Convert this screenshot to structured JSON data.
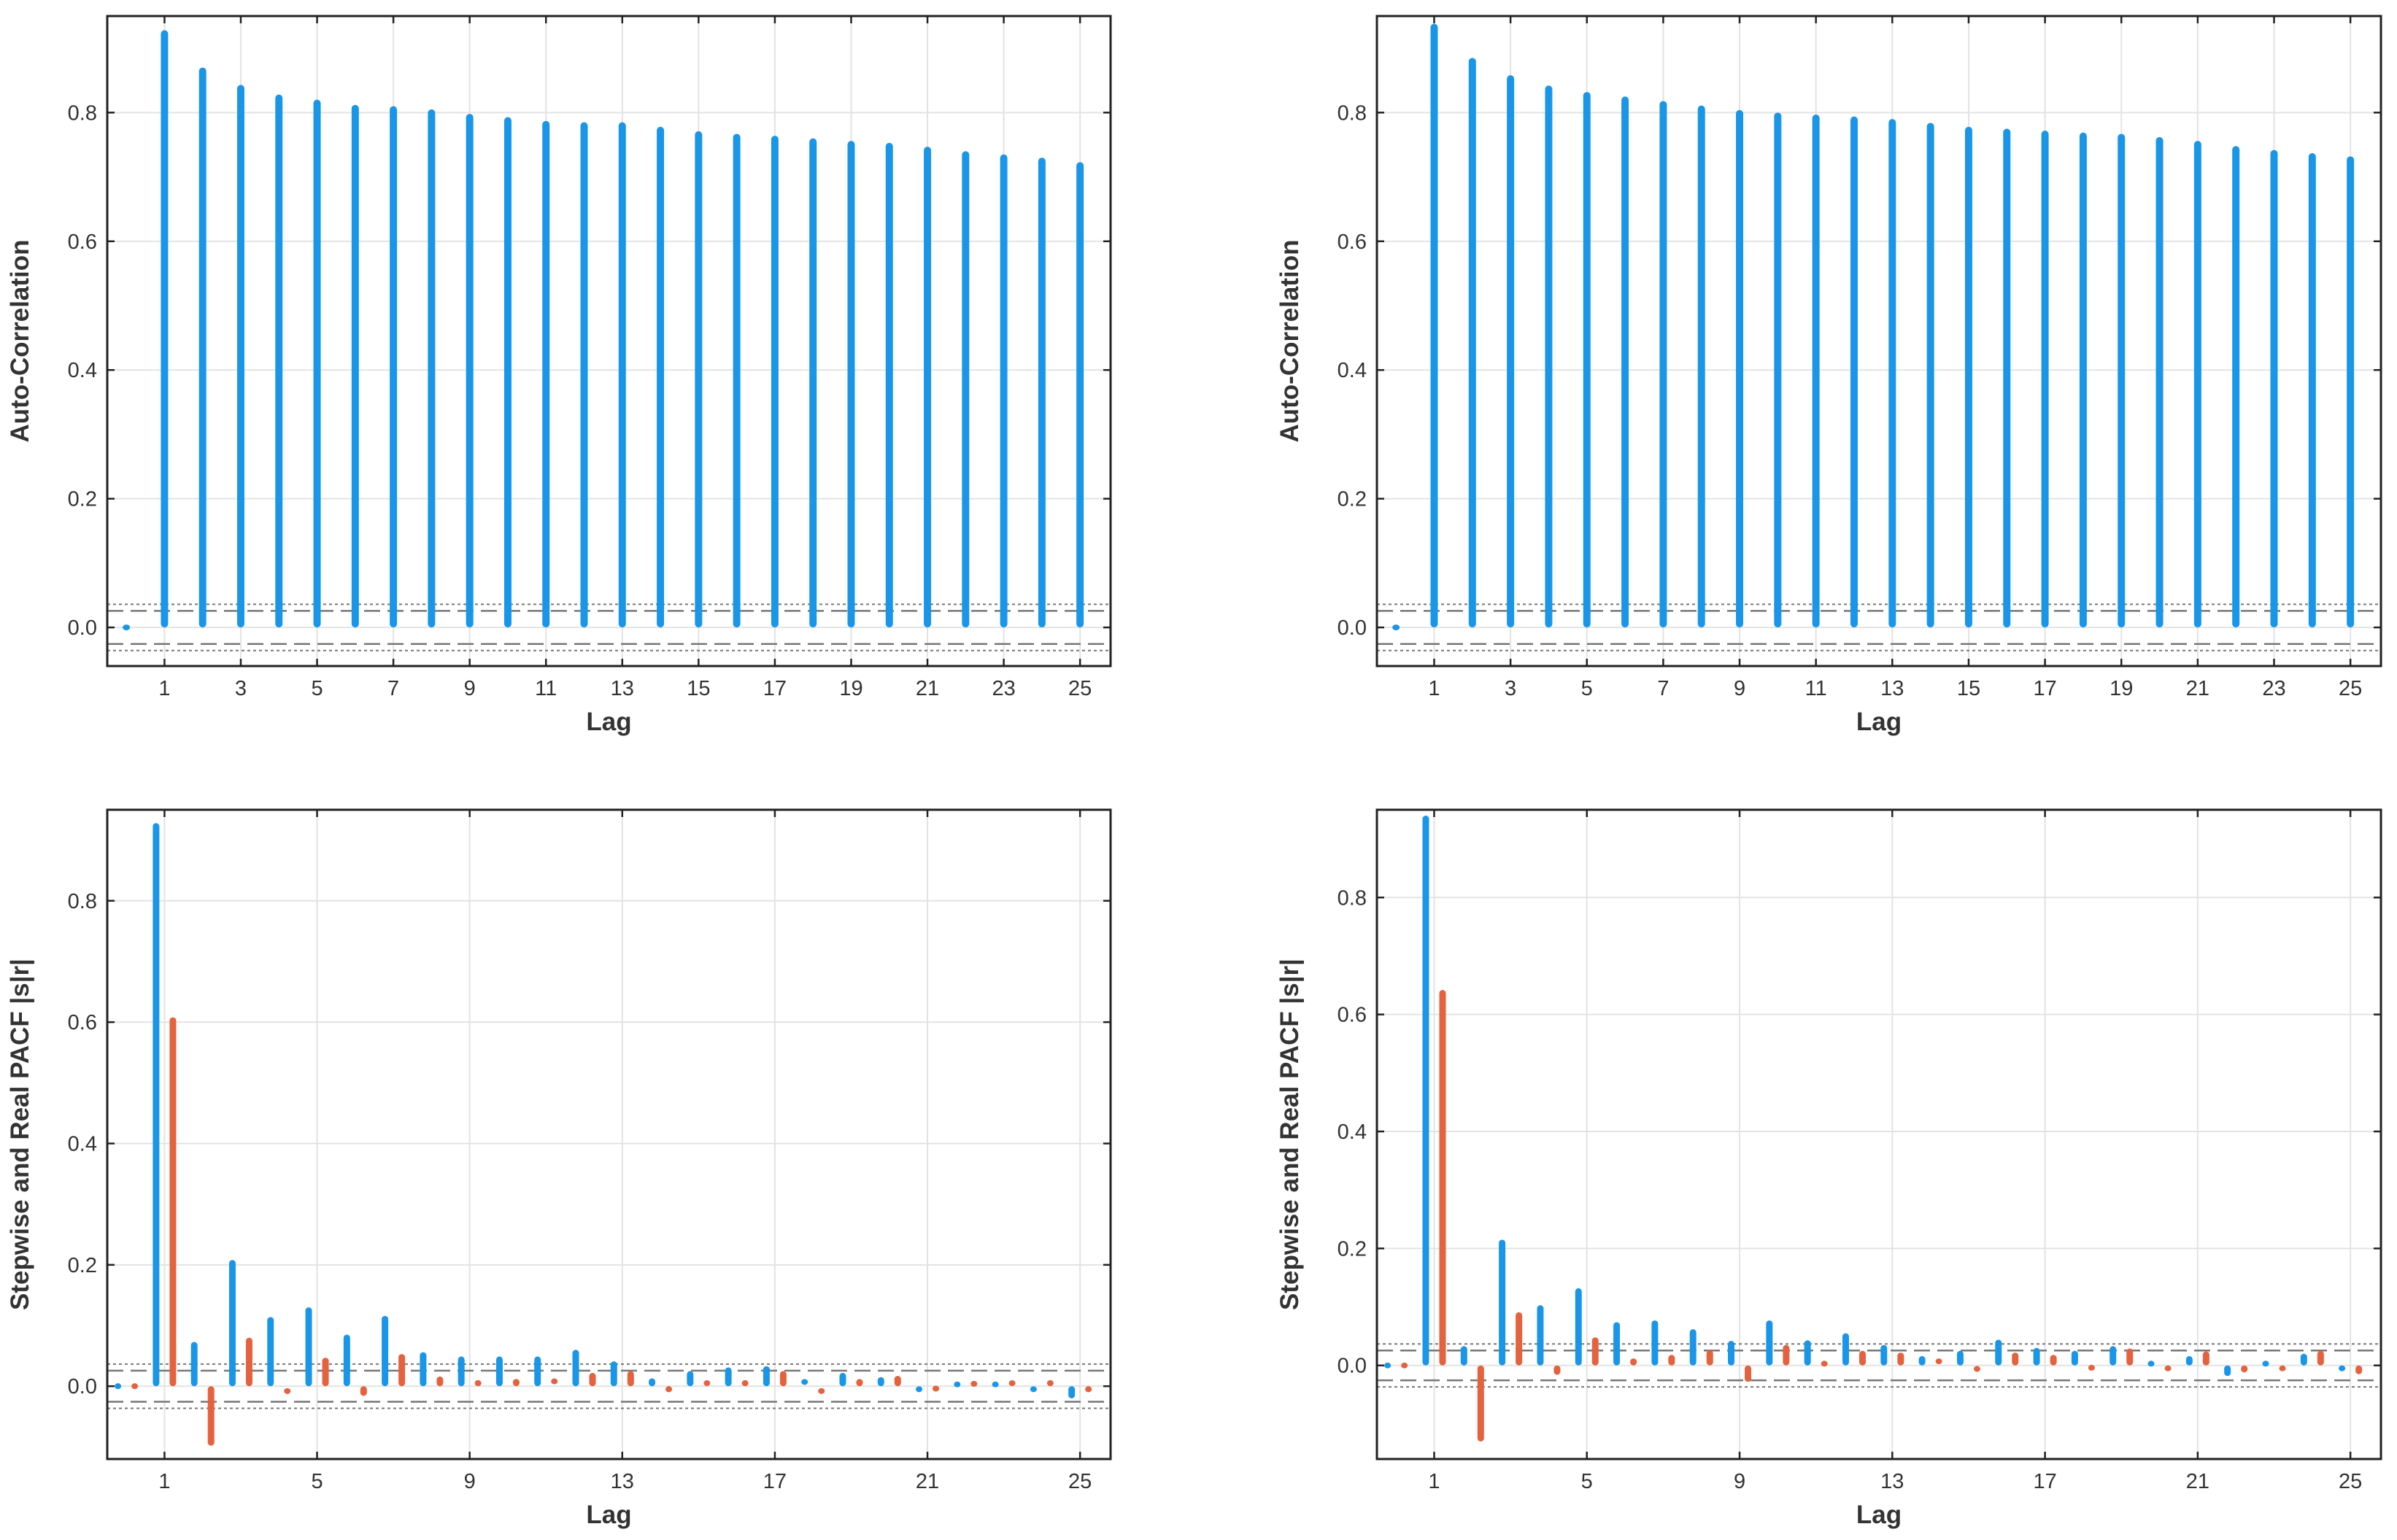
{
  "colors": {
    "acf": "#1a96e8",
    "stepwise": "#1a96e8",
    "real": "#e4623e",
    "ci": "#777777"
  },
  "chart_data": [
    {
      "type": "bar",
      "panel": "top-left",
      "title": "",
      "xlabel": "Lag",
      "ylabel": "Auto-Correlation",
      "xlim": [
        -0.5,
        25.8
      ],
      "ylim": [
        -0.06,
        0.95
      ],
      "xticks": [
        "1",
        "3",
        "5",
        "7",
        "9",
        "11",
        "13",
        "15",
        "17",
        "19",
        "21",
        "23",
        "25"
      ],
      "yticks": [
        "0.0",
        "0.2",
        "0.4",
        "0.6",
        "0.8"
      ],
      "grid": true,
      "ci_bounds": [
        0.028,
        -0.028
      ],
      "series": [
        {
          "name": "ACF",
          "color": "#1a96e8",
          "lags": [
            0,
            1,
            2,
            3,
            4,
            5,
            6,
            7,
            8,
            9,
            10,
            11,
            12,
            13,
            14,
            15,
            16,
            17,
            18,
            19,
            20,
            21,
            22,
            23,
            24,
            25
          ],
          "values": [
            0,
            0.928,
            0.87,
            0.843,
            0.828,
            0.82,
            0.812,
            0.81,
            0.805,
            0.798,
            0.793,
            0.787,
            0.785,
            0.785,
            0.778,
            0.771,
            0.767,
            0.764,
            0.76,
            0.756,
            0.753,
            0.747,
            0.74,
            0.735,
            0.73,
            0.723
          ]
        }
      ]
    },
    {
      "type": "bar",
      "panel": "top-right",
      "title": "",
      "xlabel": "Lag",
      "ylabel": "Auto-Correlation",
      "xlim": [
        -0.5,
        25.8
      ],
      "ylim": [
        -0.06,
        0.95
      ],
      "xticks": [
        "1",
        "3",
        "5",
        "7",
        "9",
        "11",
        "13",
        "15",
        "17",
        "19",
        "21",
        "23",
        "25"
      ],
      "yticks": [
        "0.0",
        "0.2",
        "0.4",
        "0.6",
        "0.8"
      ],
      "grid": true,
      "ci_bounds": [
        0.028,
        -0.028
      ],
      "series": [
        {
          "name": "ACF",
          "color": "#1a96e8",
          "lags": [
            0,
            1,
            2,
            3,
            4,
            5,
            6,
            7,
            8,
            9,
            10,
            11,
            12,
            13,
            14,
            15,
            16,
            17,
            18,
            19,
            20,
            21,
            22,
            23,
            24,
            25
          ],
          "values": [
            0,
            0.938,
            0.885,
            0.858,
            0.842,
            0.832,
            0.825,
            0.818,
            0.811,
            0.804,
            0.8,
            0.797,
            0.794,
            0.79,
            0.784,
            0.778,
            0.775,
            0.772,
            0.769,
            0.767,
            0.762,
            0.756,
            0.748,
            0.742,
            0.737,
            0.732
          ]
        }
      ]
    },
    {
      "type": "bar",
      "panel": "bottom-left",
      "title": "",
      "xlabel": "Lag",
      "ylabel": "Stepwise and Real PACF  |s|r|",
      "xlim": [
        -0.5,
        25.8
      ],
      "ylim": [
        -0.12,
        0.95
      ],
      "xticks": [
        "1",
        "5",
        "9",
        "13",
        "17",
        "21",
        "25"
      ],
      "yticks": [
        "0.0",
        "0.2",
        "0.4",
        "0.6",
        "0.8"
      ],
      "grid": true,
      "ci_bounds": [
        0.028,
        -0.028
      ],
      "series": [
        {
          "name": "Stepwise PACF",
          "color": "#1a96e8",
          "lags": [
            0,
            1,
            2,
            3,
            4,
            5,
            6,
            7,
            8,
            9,
            10,
            11,
            12,
            13,
            14,
            15,
            16,
            17,
            18,
            19,
            20,
            21,
            22,
            23,
            24,
            25
          ],
          "values": [
            0,
            0.928,
            0.073,
            0.208,
            0.114,
            0.13,
            0.085,
            0.116,
            0.056,
            0.049,
            0.049,
            0.049,
            0.06,
            0.041,
            0.013,
            0.025,
            0.031,
            0.033,
            0.007,
            0.022,
            0.015,
            -0.005,
            0.003,
            0.003,
            -0.005,
            -0.02
          ]
        },
        {
          "name": "Real PACF",
          "color": "#e4623e",
          "lags": [
            0,
            1,
            2,
            3,
            4,
            5,
            6,
            7,
            8,
            9,
            10,
            11,
            12,
            13,
            14,
            15,
            16,
            17,
            18,
            19,
            20,
            21,
            22,
            23,
            24,
            25
          ],
          "values": [
            0,
            0.608,
            -0.098,
            0.08,
            -0.008,
            0.047,
            -0.016,
            0.053,
            0.016,
            0.01,
            0.012,
            0.008,
            0.022,
            0.025,
            -0.01,
            0.005,
            0.01,
            0.025,
            -0.008,
            0.012,
            0.017,
            -0.004,
            0.004,
            0.005,
            0.01,
            -0.01
          ]
        }
      ]
    },
    {
      "type": "bar",
      "panel": "bottom-right",
      "title": "",
      "xlabel": "Lag",
      "ylabel": "Stepwise and Real PACF  |s|r|",
      "xlim": [
        -0.5,
        25.8
      ],
      "ylim": [
        -0.16,
        0.95
      ],
      "xticks": [
        "1",
        "5",
        "9",
        "13",
        "17",
        "21",
        "25"
      ],
      "yticks": [
        "0.0",
        "0.2",
        "0.4",
        "0.6",
        "0.8"
      ],
      "grid": true,
      "ci_bounds": [
        0.028,
        -0.028
      ],
      "series": [
        {
          "name": "Stepwise PACF",
          "color": "#1a96e8",
          "lags": [
            0,
            1,
            2,
            3,
            4,
            5,
            6,
            7,
            8,
            9,
            10,
            11,
            12,
            13,
            14,
            15,
            16,
            17,
            18,
            19,
            20,
            21,
            22,
            23,
            24,
            25
          ],
          "values": [
            0,
            0.94,
            0.033,
            0.215,
            0.103,
            0.132,
            0.074,
            0.077,
            0.062,
            0.042,
            0.077,
            0.043,
            0.055,
            0.035,
            0.016,
            0.025,
            0.044,
            0.03,
            0.025,
            0.033,
            0.003,
            0.016,
            -0.018,
            0.003,
            0.02,
            -0.01
          ]
        },
        {
          "name": "Real PACF",
          "color": "#e4623e",
          "lags": [
            0,
            1,
            2,
            3,
            4,
            5,
            6,
            7,
            8,
            9,
            10,
            11,
            12,
            13,
            14,
            15,
            16,
            17,
            18,
            19,
            20,
            21,
            22,
            23,
            24,
            25
          ],
          "values": [
            0,
            0.642,
            -0.13,
            0.091,
            -0.016,
            0.048,
            0.012,
            0.018,
            0.026,
            -0.028,
            0.035,
            0.003,
            0.025,
            0.022,
            0.007,
            -0.006,
            0.022,
            0.018,
            -0.004,
            0.029,
            -0.01,
            0.024,
            -0.012,
            -0.01,
            0.025,
            -0.015
          ]
        }
      ]
    }
  ]
}
